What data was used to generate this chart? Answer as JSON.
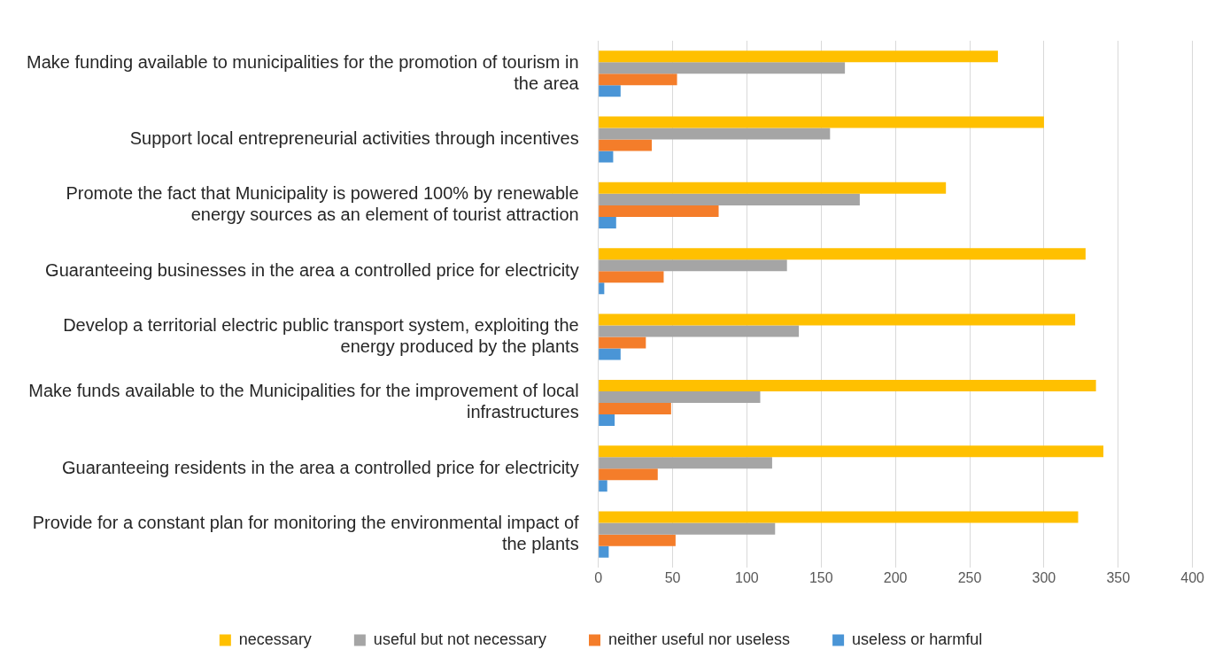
{
  "chart_data": {
    "type": "bar",
    "orientation": "horizontal",
    "categories": [
      "Make funding available to municipalities for the promotion of tourism in the area",
      "Support local entrepreneurial activities through incentives",
      "Promote the fact that Municipality is powered 100% by renewable energy sources as an element of tourist attraction",
      "Guaranteeing businesses in the area a controlled price for electricity",
      "Develop a territorial electric public transport system, exploiting the energy produced by the plants",
      "Make funds available to the Municipalities for the improvement of local infrastructures",
      "Guaranteeing residents in the area a controlled price for electricity",
      "Provide for a constant plan for monitoring the environmental impact of the plants"
    ],
    "series": [
      {
        "name": "necessary",
        "color": "#ffc000",
        "values": [
          269,
          300,
          234,
          328,
          321,
          335,
          340,
          323
        ]
      },
      {
        "name": "useful but not necessary",
        "color": "#a5a5a5",
        "values": [
          166,
          156,
          176,
          127,
          135,
          109,
          117,
          119
        ]
      },
      {
        "name": "neither useful nor useless",
        "color": "#f47d2a",
        "values": [
          53,
          36,
          81,
          44,
          32,
          49,
          40,
          52
        ]
      },
      {
        "name": "useless or harmful",
        "color": "#4a95d6",
        "values": [
          15,
          10,
          12,
          4,
          15,
          11,
          6,
          7
        ]
      }
    ],
    "xlim": [
      0,
      400
    ],
    "xticks": [
      0,
      50,
      100,
      150,
      200,
      250,
      300,
      350,
      400
    ],
    "grid": "x",
    "legend": "bottom"
  }
}
